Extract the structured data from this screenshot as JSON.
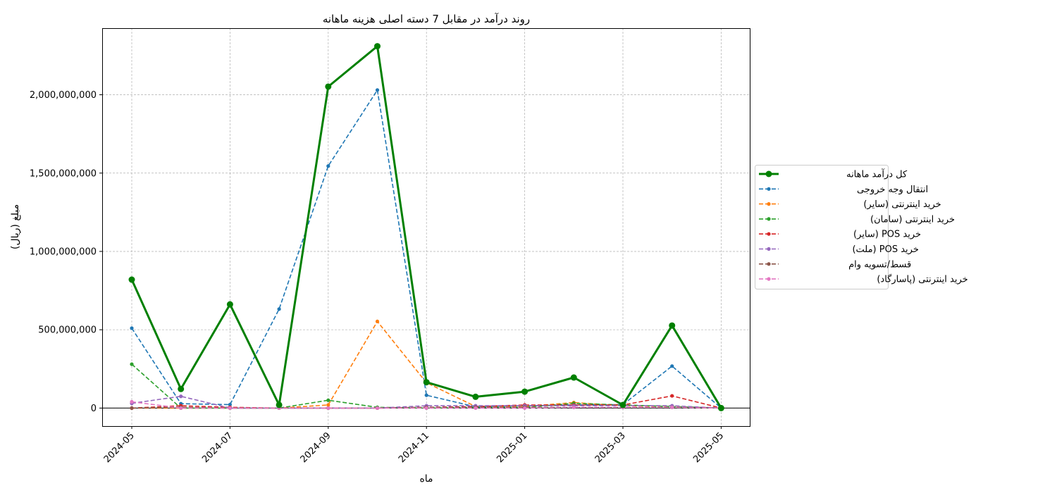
{
  "chart_data": {
    "type": "line",
    "title": "روند درآمد در مقابل 7 دسته اصلی هزینه ماهانه",
    "xlabel": "ماه",
    "ylabel": "مبلغ (ریال)",
    "x": [
      "2024-05",
      "2024-06",
      "2024-07",
      "2024-08",
      "2024-09",
      "2024-10",
      "2024-11",
      "2024-12",
      "2025-01",
      "2025-02",
      "2025-03",
      "2025-04",
      "2025-05"
    ],
    "x_ticks": [
      "2024-05",
      "2024-07",
      "2024-09",
      "2024-11",
      "2025-01",
      "2025-03",
      "2025-05"
    ],
    "y_ticks": [
      0,
      500000000,
      1000000000,
      1500000000,
      2000000000
    ],
    "y_tick_labels": [
      "0",
      "500,000,000",
      "1,000,000,000",
      "1,500,000,000",
      "2,000,000,000"
    ],
    "ylim": [
      -115000000,
      2425000000
    ],
    "grid": true,
    "legend_position": "center-right",
    "series": [
      {
        "name": "کل درآمد ماهانه",
        "color": "#008000",
        "style": "solid",
        "marker": "large",
        "values": [
          820000000,
          122000000,
          662000000,
          20000000,
          2052000000,
          2310000000,
          165000000,
          72000000,
          105000000,
          195000000,
          20000000,
          527000000,
          0
        ]
      },
      {
        "name": "انتقال وجه خروجی",
        "color": "#1f77b4",
        "style": "dashed",
        "marker": "small",
        "values": [
          510000000,
          28000000,
          22000000,
          632000000,
          1545000000,
          2030000000,
          82000000,
          8000000,
          15000000,
          20000000,
          22000000,
          268000000,
          0
        ]
      },
      {
        "name": "خرید اینترنتی (سایر)",
        "color": "#ff7f0e",
        "style": "dashed",
        "marker": "small",
        "values": [
          0,
          0,
          0,
          0,
          20000000,
          553000000,
          162000000,
          10000000,
          10000000,
          35000000,
          15000000,
          10000000,
          0
        ]
      },
      {
        "name": "خرید اینترنتی (سامان)",
        "color": "#2ca02c",
        "style": "dashed",
        "marker": "small",
        "values": [
          280000000,
          0,
          0,
          0,
          50000000,
          5000000,
          0,
          5000000,
          5000000,
          30000000,
          20000000,
          10000000,
          0
        ]
      },
      {
        "name": "خرید POS (سایر)",
        "color": "#d62728",
        "style": "dashed",
        "marker": "small",
        "values": [
          0,
          15000000,
          5000000,
          0,
          0,
          0,
          5000000,
          10000000,
          20000000,
          20000000,
          20000000,
          78000000,
          0
        ]
      },
      {
        "name": "خرید POS (ملت)",
        "color": "#9467bd",
        "style": "dashed",
        "marker": "small",
        "values": [
          30000000,
          75000000,
          0,
          0,
          0,
          0,
          15000000,
          15000000,
          15000000,
          15000000,
          15000000,
          15000000,
          0
        ]
      },
      {
        "name": "قسط/تسویه وام",
        "color": "#8c564b",
        "style": "dashed",
        "marker": "small",
        "values": [
          0,
          5000000,
          0,
          0,
          0,
          0,
          5000000,
          5000000,
          5000000,
          5000000,
          5000000,
          5000000,
          0
        ]
      },
      {
        "name": "خرید اینترنتی (پاسارگاد)",
        "color": "#e377c2",
        "style": "dashed",
        "marker": "small",
        "values": [
          40000000,
          0,
          0,
          0,
          0,
          0,
          0,
          0,
          0,
          5000000,
          5000000,
          5000000,
          0
        ]
      }
    ]
  }
}
